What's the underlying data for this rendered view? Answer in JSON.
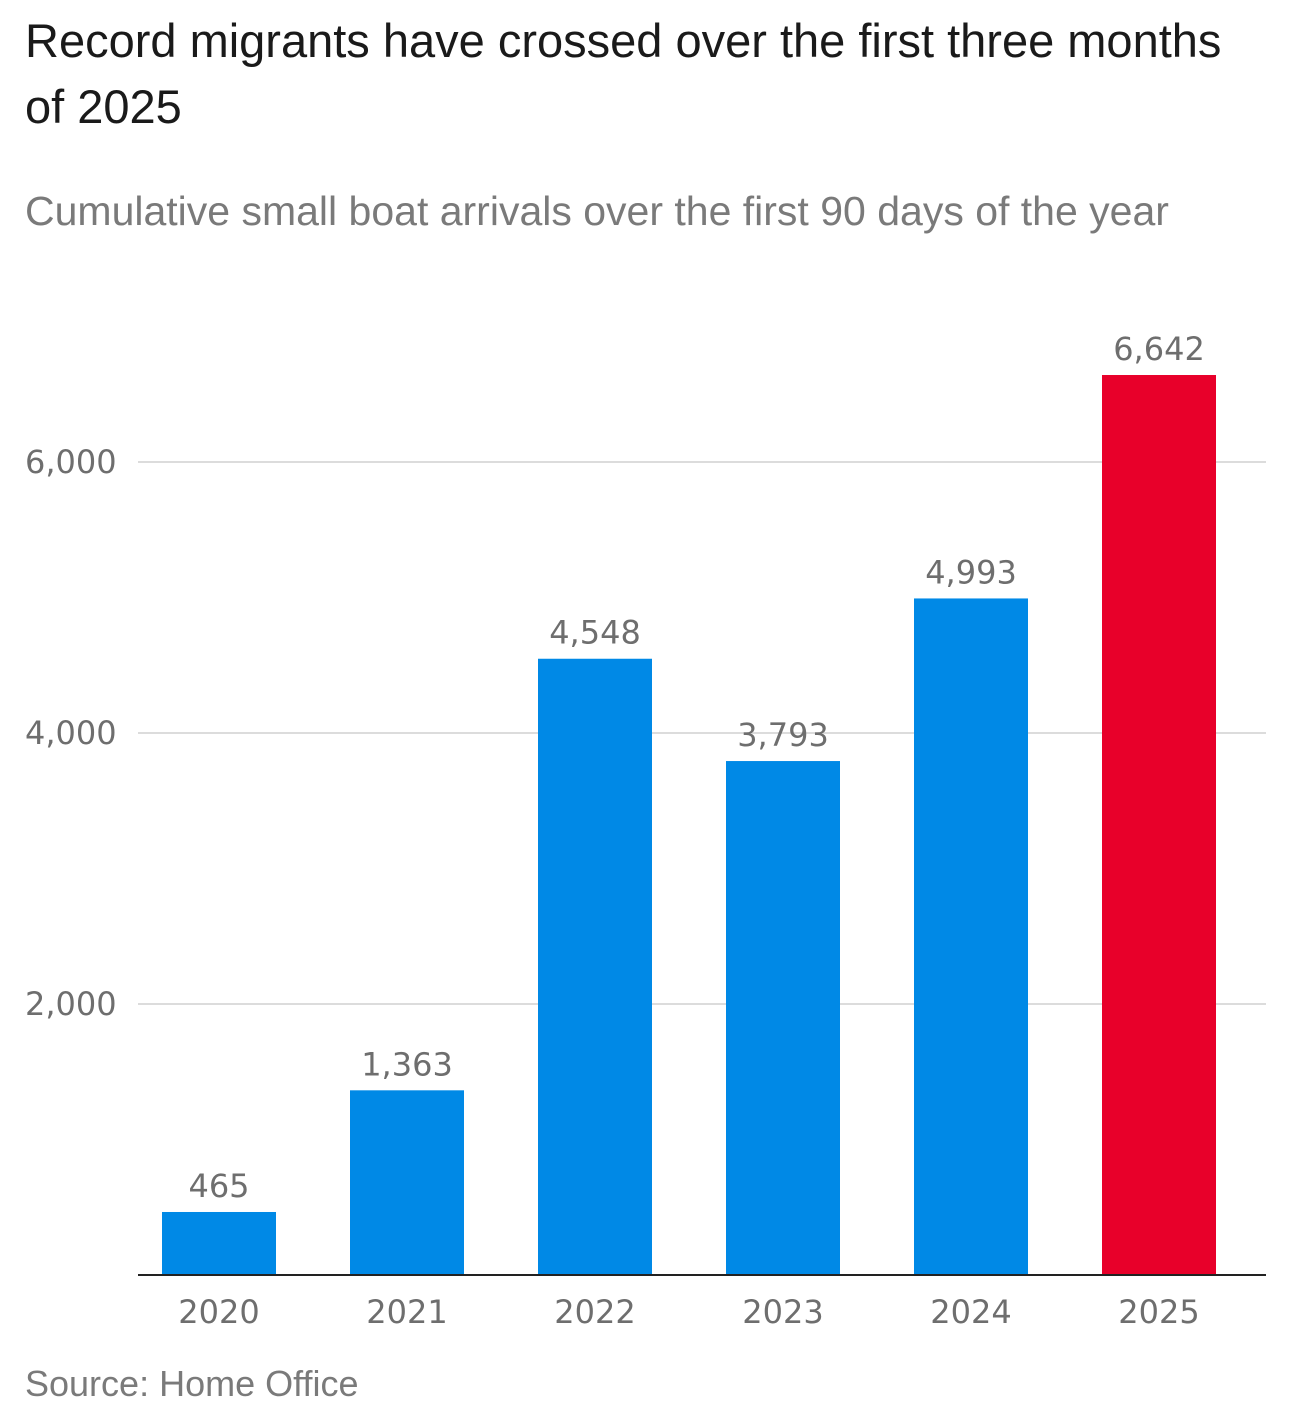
{
  "chart_data": {
    "type": "bar",
    "title": "Record migrants have crossed over the first three months of 2025",
    "subtitle": "Cumulative small boat arrivals over the first 90 days of the year",
    "categories": [
      "2020",
      "2021",
      "2022",
      "2023",
      "2024",
      "2025"
    ],
    "values": [
      465,
      1363,
      4548,
      3793,
      4993,
      6642
    ],
    "value_labels": [
      "465",
      "1,363",
      "4,548",
      "3,793",
      "4,993",
      "6,642"
    ],
    "yticks": [
      2000,
      4000,
      6000
    ],
    "ytick_labels": [
      "2,000",
      "4,000",
      "6,000"
    ],
    "ylim": [
      0,
      7000
    ],
    "grid": true,
    "legend": "none",
    "colors": {
      "default": "#0089e6",
      "highlight": "#e8002a",
      "highlight_category": "2025"
    },
    "source": "Source: Home Office"
  }
}
